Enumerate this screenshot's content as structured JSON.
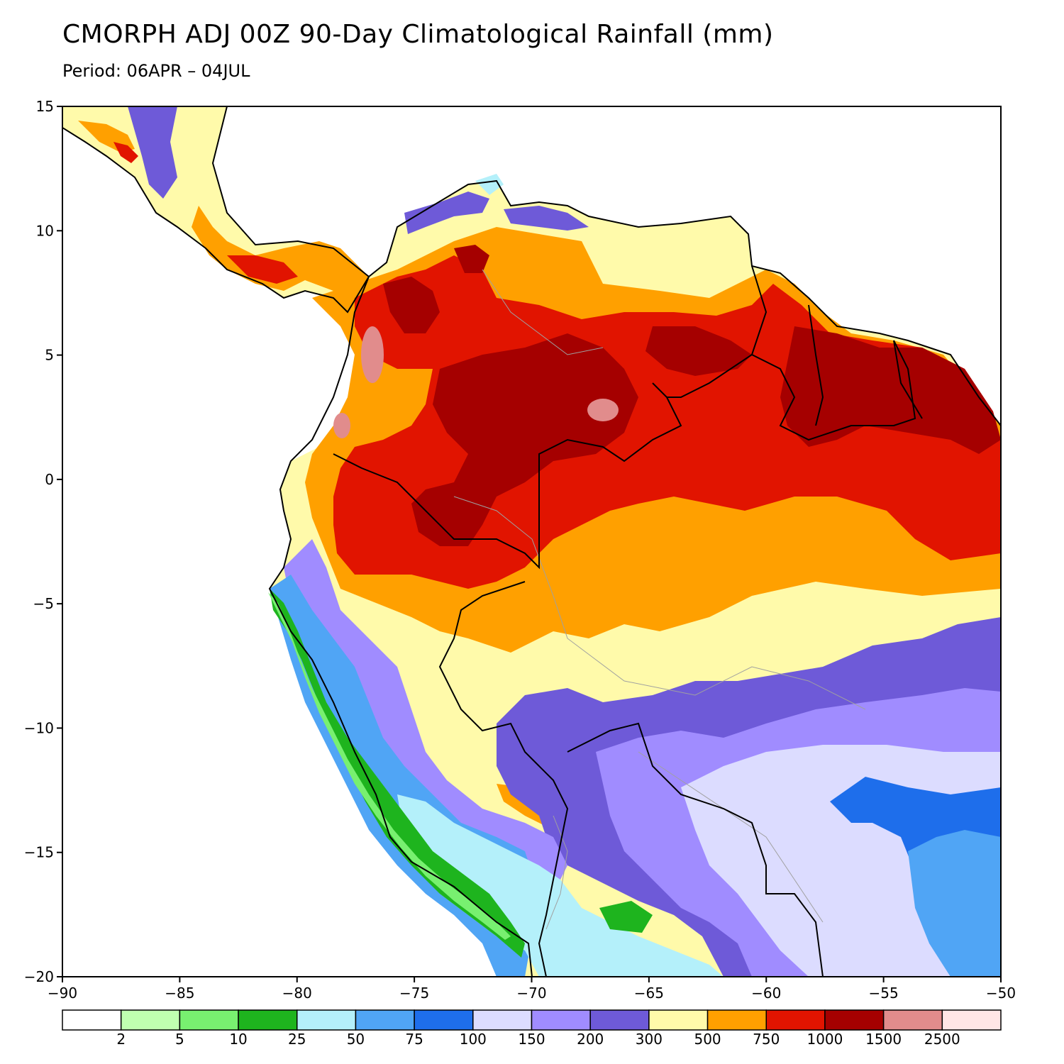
{
  "title": "CMORPH ADJ 00Z 90-Day Climatological Rainfall (mm)",
  "subtitle": "Period: 06APR – 04JUL",
  "map": {
    "lon_range": [
      -90,
      -50
    ],
    "lat_range": [
      -20,
      15
    ],
    "x_ticks": [
      -90,
      -85,
      -80,
      -75,
      -70,
      -65,
      -60,
      -55,
      -50
    ],
    "y_ticks": [
      15,
      10,
      5,
      0,
      -5,
      -10,
      -15,
      -20
    ],
    "x_tick_labels": [
      "−90",
      "−85",
      "−80",
      "−75",
      "−70",
      "−65",
      "−60",
      "−55",
      "−50"
    ],
    "y_tick_labels": [
      "15",
      "10",
      "5",
      "0",
      "−5",
      "−10",
      "−15",
      "−20"
    ],
    "ocean_color": "#ffffff"
  },
  "colorbar": {
    "colors": [
      "#ffffff",
      "#c0ffb0",
      "#78f070",
      "#1eb41e",
      "#b4f0fa",
      "#50a5f5",
      "#1e6eeb",
      "#dcdcff",
      "#a08cff",
      "#6e5ad8",
      "#fffaaa",
      "#ffa000",
      "#e11400",
      "#a50000",
      "#e18c8c",
      "#ffe6e6"
    ],
    "labels": [
      "2",
      "5",
      "10",
      "25",
      "50",
      "75",
      "100",
      "150",
      "200",
      "300",
      "500",
      "750",
      "1000",
      "1500",
      "2500"
    ]
  }
}
